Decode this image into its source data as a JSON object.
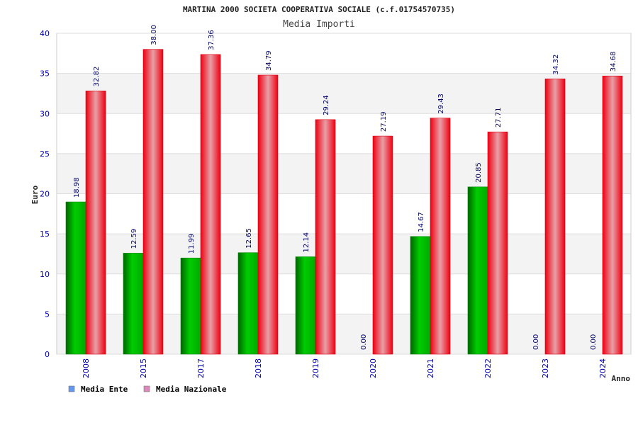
{
  "chart_data": {
    "type": "bar",
    "title": "MARTINA 2000 SOCIETA COOPERATIVA SOCIALE (c.f.01754570735)",
    "subtitle": "Media Importi",
    "xlabel": "Anno",
    "ylabel": "Euro",
    "ylim": [
      0,
      40
    ],
    "yticks": [
      "0",
      "5",
      "10",
      "15",
      "20",
      "25",
      "30",
      "35",
      "40"
    ],
    "grid": true,
    "legend_position": "bottom-left",
    "categories": [
      "2008",
      "2015",
      "2017",
      "2018",
      "2019",
      "2020",
      "2021",
      "2022",
      "2023",
      "2024"
    ],
    "series": [
      {
        "name": "Media Ente",
        "legend_color": "#6699ee",
        "bar_color": "#00bb00",
        "values": [
          18.98,
          12.59,
          11.99,
          12.65,
          12.14,
          0.0,
          14.67,
          20.85,
          0.0,
          0.0
        ],
        "labels": [
          "18.98",
          "12.59",
          "11.99",
          "12.65",
          "12.14",
          "0.00",
          "14.67",
          "20.85",
          "0.00",
          "0.00"
        ]
      },
      {
        "name": "Media Nazionale",
        "legend_color": "#dd88bb",
        "bar_color": "#ee1122",
        "values": [
          32.82,
          38.0,
          37.36,
          34.79,
          29.24,
          27.19,
          29.43,
          27.71,
          34.32,
          34.68
        ],
        "labels": [
          "32.82",
          "38.00",
          "37.36",
          "34.79",
          "29.24",
          "27.19",
          "29.43",
          "27.71",
          "34.32",
          "34.68"
        ]
      }
    ]
  }
}
